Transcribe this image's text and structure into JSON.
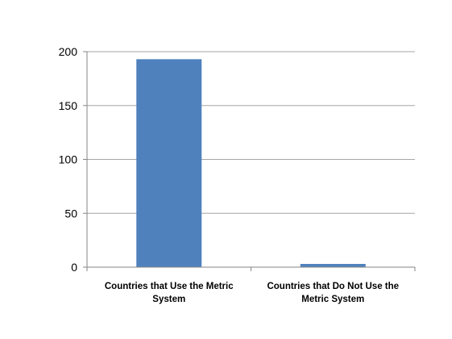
{
  "chart_data": {
    "type": "bar",
    "title": "",
    "xlabel": "",
    "ylabel": "",
    "categories": [
      [
        "Countries that Use the Metric",
        "System"
      ],
      [
        "Countries that Do Not Use the",
        "Metric System"
      ]
    ],
    "values": [
      193,
      3
    ],
    "ylim": [
      0,
      200
    ],
    "yticks": [
      0,
      50,
      100,
      150,
      200
    ],
    "grid": true,
    "legend": "none",
    "colors": {
      "bar": "#4F81BD",
      "grid": "#A6A6A6",
      "axis": "#868686"
    }
  }
}
